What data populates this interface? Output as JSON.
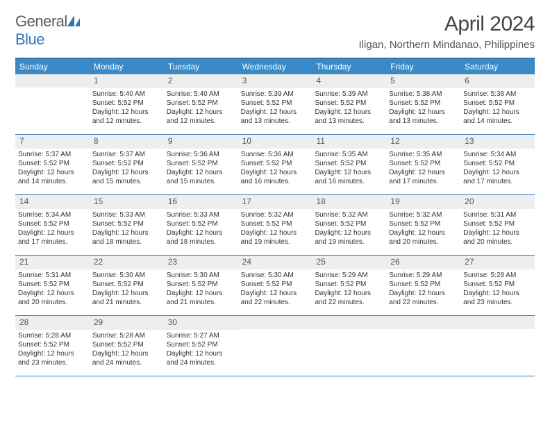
{
  "logo": {
    "part1": "General",
    "part2": "Blue"
  },
  "title": "April 2024",
  "location": "Iligan, Northern Mindanao, Philippines",
  "dayHeaders": [
    "Sunday",
    "Monday",
    "Tuesday",
    "Wednesday",
    "Thursday",
    "Friday",
    "Saturday"
  ],
  "colors": {
    "headerBar": "#3a8ac8",
    "accent": "#2e77b8",
    "dayNumBg": "#eeeeee",
    "text": "#333333",
    "logoGray": "#5b5b5b"
  },
  "fonts": {
    "title_pt": 30,
    "location_pt": 15,
    "dayheader_pt": 12,
    "daynum_pt": 12,
    "body_pt": 10
  },
  "weeks": [
    [
      {
        "num": "",
        "empty": true
      },
      {
        "num": "1",
        "sunrise": "Sunrise: 5:40 AM",
        "sunset": "Sunset: 5:52 PM",
        "daylight": "Daylight: 12 hours and 12 minutes."
      },
      {
        "num": "2",
        "sunrise": "Sunrise: 5:40 AM",
        "sunset": "Sunset: 5:52 PM",
        "daylight": "Daylight: 12 hours and 12 minutes."
      },
      {
        "num": "3",
        "sunrise": "Sunrise: 5:39 AM",
        "sunset": "Sunset: 5:52 PM",
        "daylight": "Daylight: 12 hours and 13 minutes."
      },
      {
        "num": "4",
        "sunrise": "Sunrise: 5:39 AM",
        "sunset": "Sunset: 5:52 PM",
        "daylight": "Daylight: 12 hours and 13 minutes."
      },
      {
        "num": "5",
        "sunrise": "Sunrise: 5:38 AM",
        "sunset": "Sunset: 5:52 PM",
        "daylight": "Daylight: 12 hours and 13 minutes."
      },
      {
        "num": "6",
        "sunrise": "Sunrise: 5:38 AM",
        "sunset": "Sunset: 5:52 PM",
        "daylight": "Daylight: 12 hours and 14 minutes."
      }
    ],
    [
      {
        "num": "7",
        "sunrise": "Sunrise: 5:37 AM",
        "sunset": "Sunset: 5:52 PM",
        "daylight": "Daylight: 12 hours and 14 minutes."
      },
      {
        "num": "8",
        "sunrise": "Sunrise: 5:37 AM",
        "sunset": "Sunset: 5:52 PM",
        "daylight": "Daylight: 12 hours and 15 minutes."
      },
      {
        "num": "9",
        "sunrise": "Sunrise: 5:36 AM",
        "sunset": "Sunset: 5:52 PM",
        "daylight": "Daylight: 12 hours and 15 minutes."
      },
      {
        "num": "10",
        "sunrise": "Sunrise: 5:36 AM",
        "sunset": "Sunset: 5:52 PM",
        "daylight": "Daylight: 12 hours and 16 minutes."
      },
      {
        "num": "11",
        "sunrise": "Sunrise: 5:35 AM",
        "sunset": "Sunset: 5:52 PM",
        "daylight": "Daylight: 12 hours and 16 minutes."
      },
      {
        "num": "12",
        "sunrise": "Sunrise: 5:35 AM",
        "sunset": "Sunset: 5:52 PM",
        "daylight": "Daylight: 12 hours and 17 minutes."
      },
      {
        "num": "13",
        "sunrise": "Sunrise: 5:34 AM",
        "sunset": "Sunset: 5:52 PM",
        "daylight": "Daylight: 12 hours and 17 minutes."
      }
    ],
    [
      {
        "num": "14",
        "sunrise": "Sunrise: 5:34 AM",
        "sunset": "Sunset: 5:52 PM",
        "daylight": "Daylight: 12 hours and 17 minutes."
      },
      {
        "num": "15",
        "sunrise": "Sunrise: 5:33 AM",
        "sunset": "Sunset: 5:52 PM",
        "daylight": "Daylight: 12 hours and 18 minutes."
      },
      {
        "num": "16",
        "sunrise": "Sunrise: 5:33 AM",
        "sunset": "Sunset: 5:52 PM",
        "daylight": "Daylight: 12 hours and 18 minutes."
      },
      {
        "num": "17",
        "sunrise": "Sunrise: 5:32 AM",
        "sunset": "Sunset: 5:52 PM",
        "daylight": "Daylight: 12 hours and 19 minutes."
      },
      {
        "num": "18",
        "sunrise": "Sunrise: 5:32 AM",
        "sunset": "Sunset: 5:52 PM",
        "daylight": "Daylight: 12 hours and 19 minutes."
      },
      {
        "num": "19",
        "sunrise": "Sunrise: 5:32 AM",
        "sunset": "Sunset: 5:52 PM",
        "daylight": "Daylight: 12 hours and 20 minutes."
      },
      {
        "num": "20",
        "sunrise": "Sunrise: 5:31 AM",
        "sunset": "Sunset: 5:52 PM",
        "daylight": "Daylight: 12 hours and 20 minutes."
      }
    ],
    [
      {
        "num": "21",
        "sunrise": "Sunrise: 5:31 AM",
        "sunset": "Sunset: 5:52 PM",
        "daylight": "Daylight: 12 hours and 20 minutes."
      },
      {
        "num": "22",
        "sunrise": "Sunrise: 5:30 AM",
        "sunset": "Sunset: 5:52 PM",
        "daylight": "Daylight: 12 hours and 21 minutes."
      },
      {
        "num": "23",
        "sunrise": "Sunrise: 5:30 AM",
        "sunset": "Sunset: 5:52 PM",
        "daylight": "Daylight: 12 hours and 21 minutes."
      },
      {
        "num": "24",
        "sunrise": "Sunrise: 5:30 AM",
        "sunset": "Sunset: 5:52 PM",
        "daylight": "Daylight: 12 hours and 22 minutes."
      },
      {
        "num": "25",
        "sunrise": "Sunrise: 5:29 AM",
        "sunset": "Sunset: 5:52 PM",
        "daylight": "Daylight: 12 hours and 22 minutes."
      },
      {
        "num": "26",
        "sunrise": "Sunrise: 5:29 AM",
        "sunset": "Sunset: 5:52 PM",
        "daylight": "Daylight: 12 hours and 22 minutes."
      },
      {
        "num": "27",
        "sunrise": "Sunrise: 5:28 AM",
        "sunset": "Sunset: 5:52 PM",
        "daylight": "Daylight: 12 hours and 23 minutes."
      }
    ],
    [
      {
        "num": "28",
        "sunrise": "Sunrise: 5:28 AM",
        "sunset": "Sunset: 5:52 PM",
        "daylight": "Daylight: 12 hours and 23 minutes."
      },
      {
        "num": "29",
        "sunrise": "Sunrise: 5:28 AM",
        "sunset": "Sunset: 5:52 PM",
        "daylight": "Daylight: 12 hours and 24 minutes."
      },
      {
        "num": "30",
        "sunrise": "Sunrise: 5:27 AM",
        "sunset": "Sunset: 5:52 PM",
        "daylight": "Daylight: 12 hours and 24 minutes."
      },
      {
        "num": "",
        "empty": true
      },
      {
        "num": "",
        "empty": true
      },
      {
        "num": "",
        "empty": true
      },
      {
        "num": "",
        "empty": true
      }
    ]
  ]
}
